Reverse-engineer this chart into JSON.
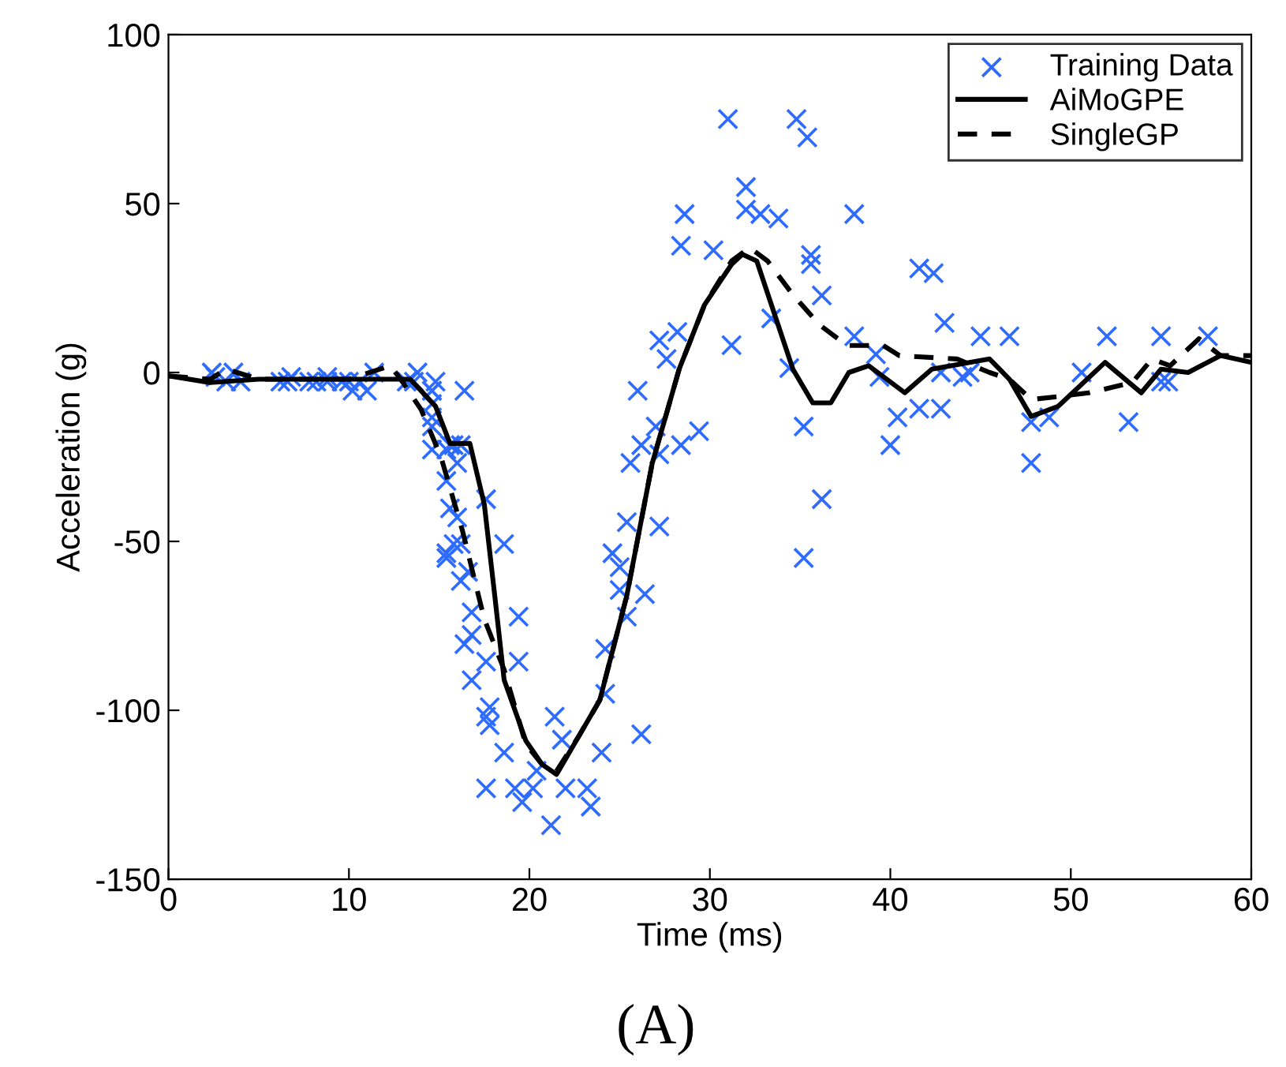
{
  "chart_data": {
    "type": "scatter",
    "xlabel": "Time (ms)",
    "ylabel": "Acceleration (g)",
    "xlim": [
      0,
      60
    ],
    "xticks": [
      0,
      10,
      20,
      30,
      40,
      50,
      60
    ],
    "ylim": [
      -150,
      100
    ],
    "yticks": [
      -150,
      -100,
      -50,
      0,
      50,
      100
    ],
    "grid": false,
    "legend": "top right",
    "annotations": [
      "(A)"
    ],
    "series": [
      {
        "name": "Training Data",
        "marker": "cross",
        "color": "#2e6bff",
        "x": [
          2.4,
          2.6,
          3.2,
          3.6,
          4.0,
          6.2,
          6.6,
          6.8,
          7.8,
          8.2,
          8.8,
          8.8,
          9.6,
          10.0,
          10.2,
          10.6,
          11.0,
          11.4,
          13.2,
          13.6,
          13.8,
          14.6,
          14.6,
          14.6,
          14.6,
          14.6,
          14.6,
          14.8,
          15.4,
          15.4,
          15.4,
          15.4,
          15.6,
          15.6,
          15.8,
          15.8,
          16.0,
          16.0,
          16.2,
          16.2,
          16.2,
          16.4,
          16.4,
          16.6,
          16.8,
          16.8,
          16.8,
          17.6,
          17.6,
          17.6,
          17.6,
          17.8,
          17.8,
          18.6,
          18.6,
          19.2,
          19.4,
          19.4,
          19.6,
          20.2,
          20.4,
          21.2,
          21.4,
          21.8,
          22.0,
          23.2,
          23.4,
          24.0,
          24.2,
          24.2,
          24.6,
          25.0,
          25.0,
          25.4,
          25.4,
          25.6,
          26.0,
          26.2,
          26.2,
          26.4,
          27.0,
          27.2,
          27.2,
          27.2,
          27.6,
          28.2,
          28.4,
          28.4,
          28.6,
          29.4,
          30.2,
          31.0,
          31.2,
          32.0,
          32.0,
          32.8,
          33.4,
          33.8,
          34.4,
          34.8,
          35.2,
          35.2,
          35.4,
          35.6,
          35.6,
          36.2,
          36.2,
          38.0,
          38.0,
          39.2,
          39.4,
          40.0,
          40.4,
          41.6,
          41.6,
          42.4,
          42.8,
          42.8,
          43.0,
          44.0,
          44.4,
          45.0,
          46.6,
          47.8,
          47.8,
          48.8,
          50.6,
          52.0,
          53.2,
          55.0,
          55.0,
          55.4,
          57.6
        ],
        "values": [
          0.0,
          -1.3,
          -2.7,
          0.0,
          -2.7,
          -2.7,
          -2.7,
          -1.3,
          -2.7,
          -2.7,
          -1.3,
          -2.7,
          -2.7,
          -2.7,
          -5.4,
          -2.7,
          -5.4,
          0.0,
          -2.7,
          -2.7,
          0.0,
          -13.3,
          -5.4,
          -5.4,
          -9.3,
          -16.0,
          -22.8,
          -2.7,
          -22.8,
          -32.1,
          -53.5,
          -54.9,
          -40.2,
          -21.5,
          -21.5,
          -50.8,
          -42.9,
          -26.8,
          -21.5,
          -50.8,
          -61.7,
          -5.4,
          -80.4,
          -59.0,
          -71.0,
          -91.1,
          -77.7,
          -37.5,
          -85.6,
          -123.1,
          -101.9,
          -99.1,
          -104.4,
          -112.5,
          -50.8,
          -123.1,
          -85.6,
          -72.3,
          -127.2,
          -123.1,
          -117.9,
          -134.0,
          -101.9,
          -108.7,
          -123.1,
          -123.1,
          -128.5,
          -112.5,
          -95.1,
          -81.8,
          -53.5,
          -64.4,
          -57.6,
          -72.3,
          -44.3,
          -26.8,
          -5.4,
          -107.1,
          -21.5,
          -65.6,
          -16.0,
          -45.6,
          -24.2,
          9.5,
          4.0,
          12.0,
          -21.5,
          37.5,
          46.9,
          -17.4,
          36.2,
          75.0,
          8.1,
          54.9,
          48.2,
          46.9,
          16.0,
          45.6,
          1.3,
          75.0,
          -16.0,
          -54.9,
          69.6,
          34.8,
          32.1,
          -37.5,
          22.8,
          46.9,
          10.7,
          5.4,
          -1.3,
          -21.5,
          -13.3,
          30.8,
          -10.7,
          29.4,
          0.0,
          -10.7,
          14.7,
          -1.3,
          0.0,
          10.7,
          10.7,
          -26.8,
          -14.7,
          -13.3,
          0.0,
          10.7,
          -14.7,
          -2.7,
          10.7,
          -2.7,
          10.7
        ]
      },
      {
        "name": "AiMoGPE",
        "type": "line",
        "line_style": "solid",
        "color": "#000000",
        "x": [
          0,
          2.3,
          5,
          10,
          13.4,
          14.8,
          15.6,
          16.7,
          17.5,
          18.1,
          18.6,
          19.8,
          20.7,
          21.5,
          22.7,
          23.9,
          25.4,
          26.8,
          28.3,
          29.7,
          31.2,
          31.8,
          32.6,
          34.6,
          35.7,
          36.7,
          37.7,
          38.8,
          40.8,
          42.3,
          45.5,
          46.6,
          47.8,
          49.3,
          51.9,
          53.9,
          55,
          56.5,
          58.3,
          60
        ],
        "values": [
          -1,
          -3,
          -2,
          -2,
          -2,
          -10,
          -21,
          -21,
          -39,
          -67,
          -91,
          -109,
          -116,
          -119,
          -108,
          -97,
          -66,
          -27,
          1,
          20,
          32,
          35,
          33,
          1,
          -9,
          -9,
          0,
          2,
          -6,
          1,
          4,
          -2,
          -13,
          -10,
          3,
          -6,
          1,
          0,
          5,
          3
        ]
      },
      {
        "name": "SingleGP",
        "type": "line",
        "line_style": "dashed",
        "color": "#000000",
        "x": [
          0,
          2.3,
          3.2,
          5,
          10,
          12.3,
          13,
          14,
          15.1,
          16.3,
          17.5,
          18.6,
          19.8,
          20.7,
          21.5,
          22.7,
          23.9,
          25.4,
          26.8,
          28.3,
          29.7,
          31.2,
          32.2,
          33.2,
          34.6,
          36.1,
          37.6,
          39.6,
          40.5,
          43.7,
          45.5,
          46.6,
          47.8,
          49.5,
          51,
          53.4,
          54.5,
          55.5,
          57.1,
          58.3,
          60
        ],
        "values": [
          -1,
          -2,
          1,
          -2,
          -2,
          2,
          -3,
          -11,
          -25,
          -47,
          -73,
          -88,
          -110,
          -116,
          -118,
          -108,
          -97,
          -66,
          -27,
          1,
          20,
          33,
          37,
          33,
          23,
          14,
          8,
          8,
          5,
          4,
          0,
          -2,
          -8,
          -7,
          -6,
          -3,
          4,
          2,
          10,
          5,
          5
        ]
      }
    ]
  }
}
